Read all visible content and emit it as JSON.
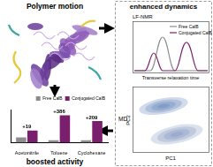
{
  "diagram": {
    "protein": {
      "label": "Polymer motion"
    },
    "dynamics": {
      "title": "enhanced dynamics",
      "nmr": {
        "label": "LF-NMR",
        "legend": [
          "Free CalB",
          "Conjugated CalB"
        ],
        "x_label": "Transverse relaxation time"
      },
      "md": {
        "label": "MD",
        "x_label": "PC1",
        "y_label": "PC2"
      }
    },
    "activity": {
      "label": "boosted activity"
    }
  },
  "chart_data": {
    "type": "bar",
    "categories": [
      "Acetonitrile",
      "Toluene",
      "Cyclohexane"
    ],
    "series": [
      {
        "name": "Free CalB",
        "color": "#8c8c8c",
        "values": [
          18,
          8,
          8
        ]
      },
      {
        "name": "Conjugated CalB",
        "color": "#7a1f6d",
        "values": [
          42,
          95,
          75
        ]
      }
    ],
    "ylim": [
      0,
      115
    ],
    "tick_labels": "x",
    "legend": "top-right",
    "annotations": [
      {
        "category": "Acetonitrile",
        "text": "+19"
      },
      {
        "category": "Toluene",
        "text": "+386"
      },
      {
        "category": "Cyclohexane",
        "text": "+209"
      }
    ]
  }
}
